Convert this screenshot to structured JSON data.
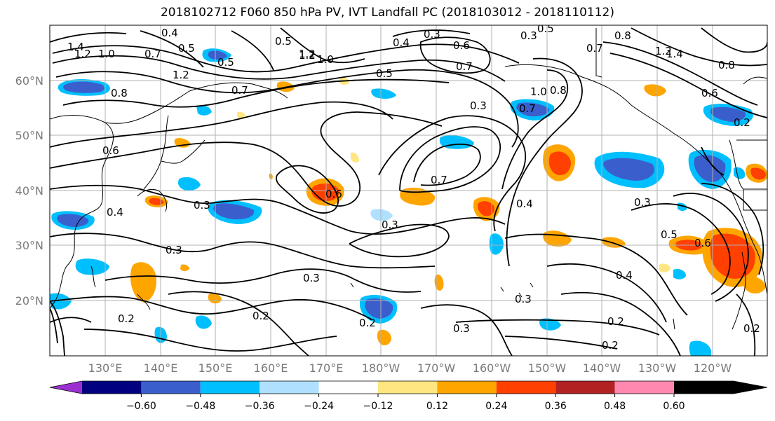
{
  "title": "2018102712 F060 850 hPa PV, IVT Landfall PC (2018103012 - 2018110112)",
  "lat_labels": [
    "60°N",
    "50°N",
    "40°N",
    "30°N",
    "20°N"
  ],
  "lon_labels": [
    "130°E",
    "140°E",
    "150°E",
    "160°E",
    "170°E",
    "180°W",
    "170°W",
    "160°W",
    "150°W",
    "140°W",
    "130°W",
    "120°W"
  ],
  "colorbar": {
    "ticks": [
      "−0.60",
      "−0.48",
      "−0.36",
      "−0.24",
      "−0.12",
      "0.12",
      "0.24",
      "0.36",
      "0.48",
      "0.60"
    ],
    "colors": [
      "#9b30d0",
      "#000080",
      "#3a5fcd",
      "#00bfff",
      "#b0e0ff",
      "#ffffff",
      "#ffe680",
      "#ffa500",
      "#ff4000",
      "#b22222",
      "#ff88b0"
    ]
  },
  "contour_labels": [
    "1.4",
    "1.2",
    "1.0",
    "0.4",
    "0.5",
    "0.7",
    "1.2",
    "0.8",
    "0.5",
    "1.2",
    "0.7",
    "0.5",
    "0.3",
    "0.4",
    "0.6",
    "0.7",
    "1.2",
    "1.0",
    "0.5",
    "1.0",
    "0.8",
    "0.7",
    "0.3",
    "0.3",
    "0.5",
    "0.7",
    "1.4",
    "1.2",
    "0.8",
    "0.6",
    "0.8",
    "0.2",
    "0.6",
    "0.6",
    "0.4",
    "0.3",
    "0.7",
    "0.3",
    "0.4",
    "0.3",
    "0.2",
    "0.2",
    "0.3",
    "0.2",
    "0.3",
    "0.3",
    "0.5",
    "0.6",
    "0.4",
    "0.2",
    "0.2",
    "0.2",
    "0.3"
  ],
  "colors": {
    "contour": "#000000",
    "grid": "#b0b0b0",
    "coast": "#000000",
    "tick_label": "#7a7a7a"
  }
}
